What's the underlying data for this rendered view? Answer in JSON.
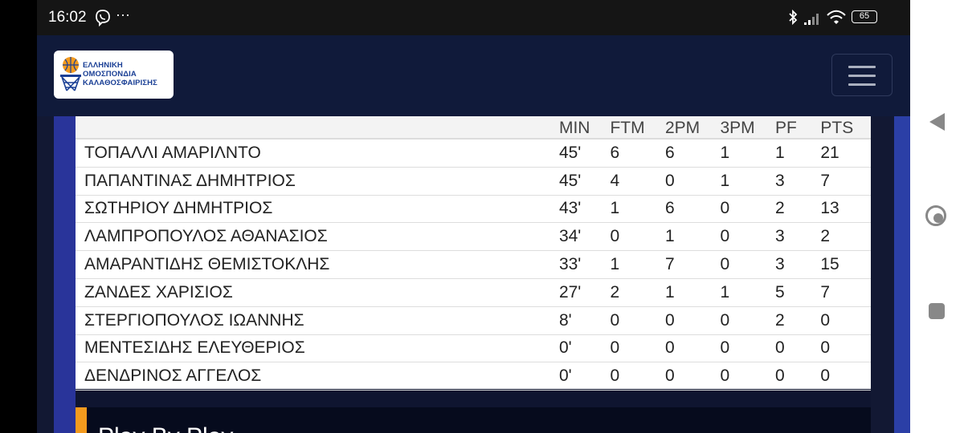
{
  "status_bar": {
    "time": "16:02",
    "more": "···",
    "battery": "65"
  },
  "header": {
    "logo_lines": [
      "ΕΛΛΗΝΙΚΗ",
      "ΟΜΟΣΠΟΝΔΙΑ",
      "ΚΑΛΑΘΟΣΦΑΙΡΙΣΗΣ"
    ]
  },
  "table": {
    "columns": [
      "MIN",
      "FTM",
      "2PM",
      "3PM",
      "PF",
      "PTS"
    ],
    "rows": [
      {
        "name": "ΤΟΠΑΛΛΙ ΑΜΑΡΙΛΝΤΟ",
        "min": "45'",
        "ftm": "6",
        "p2": "6",
        "p3": "1",
        "pf": "1",
        "pts": "21"
      },
      {
        "name": "ΠΑΠΑΝΤΙΝΑΣ ΔΗΜΗΤΡΙΟΣ",
        "min": "45'",
        "ftm": "4",
        "p2": "0",
        "p3": "1",
        "pf": "3",
        "pts": "7"
      },
      {
        "name": "ΣΩΤΗΡΙΟΥ ΔΗΜΗΤΡΙΟΣ",
        "min": "43'",
        "ftm": "1",
        "p2": "6",
        "p3": "0",
        "pf": "2",
        "pts": "13"
      },
      {
        "name": "ΛΑΜΠΡΟΠΟΥΛΟΣ ΑΘΑΝΑΣΙΟΣ",
        "min": "34'",
        "ftm": "0",
        "p2": "1",
        "p3": "0",
        "pf": "3",
        "pts": "2"
      },
      {
        "name": "ΑΜΑΡΑΝΤΙΔΗΣ ΘΕΜΙΣΤΟΚΛΗΣ",
        "min": "33'",
        "ftm": "1",
        "p2": "7",
        "p3": "0",
        "pf": "3",
        "pts": "15"
      },
      {
        "name": "ΖΑΝΔΕΣ ΧΑΡΙΣΙΟΣ",
        "min": "27'",
        "ftm": "2",
        "p2": "1",
        "p3": "1",
        "pf": "5",
        "pts": "7"
      },
      {
        "name": "ΣΤΕΡΓΙΟΠΟΥΛΟΣ ΙΩΑΝΝΗΣ",
        "min": "8'",
        "ftm": "0",
        "p2": "0",
        "p3": "0",
        "pf": "2",
        "pts": "0"
      },
      {
        "name": "ΜΕΝΤΕΣΙΔΗΣ ΕΛΕΥΘΕΡΙΟΣ",
        "min": "0'",
        "ftm": "0",
        "p2": "0",
        "p3": "0",
        "pf": "0",
        "pts": "0"
      },
      {
        "name": "ΔΕΝΔΡΙΝΟΣ ΑΓΓΕΛΟΣ",
        "min": "0'",
        "ftm": "0",
        "p2": "0",
        "p3": "0",
        "pf": "0",
        "pts": "0"
      }
    ]
  },
  "play_by_play": {
    "title": "Play By Play"
  },
  "colors": {
    "header_bg": "#101a3a",
    "accent": "#f39a1e",
    "band": "#29349a"
  }
}
